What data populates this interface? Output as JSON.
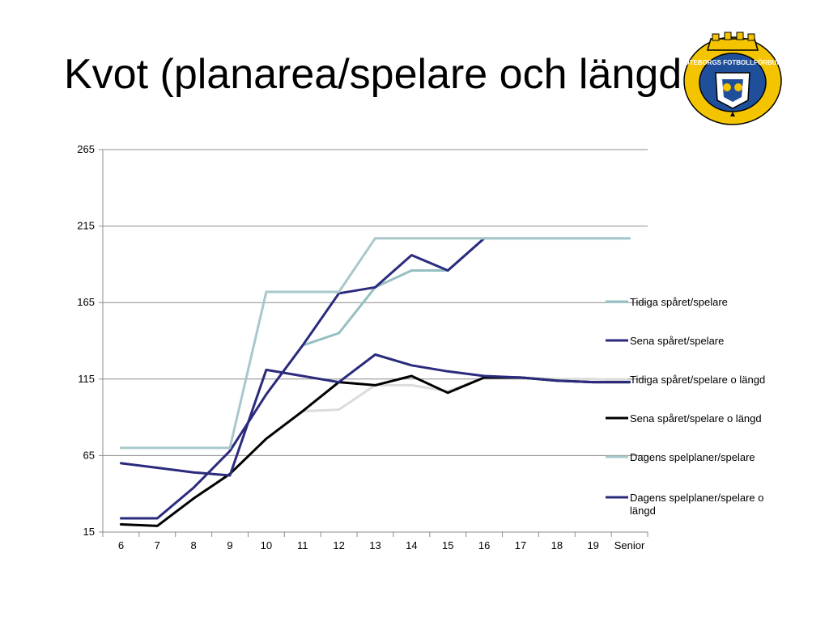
{
  "slide": {
    "title": "Kvot (planarea/spelare och längd)"
  },
  "logo": {
    "name": "Göteborgs Fotbollförbund emblem",
    "text": "GÖTEBORGS FOTBOLLFÖRBUND",
    "colors": {
      "ring": "#f5c400",
      "field": "#1f4f9a",
      "outline": "#000000"
    }
  },
  "chart_data": {
    "type": "line",
    "categories": [
      "6",
      "7",
      "8",
      "9",
      "10",
      "11",
      "12",
      "13",
      "14",
      "15",
      "16",
      "17",
      "18",
      "19",
      "Senior"
    ],
    "ylim": [
      15,
      265
    ],
    "yticks": [
      15,
      65,
      115,
      165,
      215,
      265
    ],
    "grid": true,
    "legend_position": "right",
    "series": [
      {
        "name": "Tidiga spåret/spelare",
        "color": "#95bfc2",
        "values": [
          null,
          null,
          null,
          null,
          null,
          137,
          145,
          175,
          186,
          186,
          207,
          207,
          207,
          207,
          207
        ]
      },
      {
        "name": "Sena spåret/spelare",
        "color": "#2b2b7e",
        "values": [
          24,
          24,
          44,
          68,
          105,
          137,
          171,
          175,
          196,
          186,
          207,
          null,
          null,
          null,
          null
        ]
      },
      {
        "name": "Tidiga spåret/spelare o längd",
        "color": "#dcdcdc",
        "values": [
          null,
          null,
          null,
          null,
          null,
          94,
          95,
          111,
          111,
          107,
          116,
          116,
          115,
          115,
          114
        ]
      },
      {
        "name": "Sena spåret/spelare o längd",
        "color": "#000000",
        "values": [
          20,
          19,
          37,
          53,
          76,
          94,
          113,
          111,
          117,
          106,
          116,
          116,
          114,
          113,
          113
        ]
      },
      {
        "name": "Dagens spelplaner/spelare",
        "color": "#a9c8cb",
        "values": [
          70,
          70,
          70,
          70,
          172,
          172,
          172,
          207,
          207,
          207,
          207,
          207,
          207,
          207,
          207
        ]
      },
      {
        "name": "Dagens spelplaner/spelare o längd",
        "color": "#2b2b7e",
        "values": [
          60,
          57,
          54,
          52,
          121,
          117,
          113,
          131,
          124,
          120,
          117,
          116,
          114,
          113,
          113
        ]
      }
    ],
    "legend_lines": [
      [
        "Tidiga spåret/spelare"
      ],
      [
        "Sena spåret/spelare"
      ],
      [
        "Tidiga spåret/spelare o längd"
      ],
      [
        "Sena spåret/spelare o längd"
      ],
      [
        "Dagens spelplaner/spelare"
      ],
      [
        "Dagens spelplaner/spelare o",
        "längd"
      ]
    ]
  }
}
